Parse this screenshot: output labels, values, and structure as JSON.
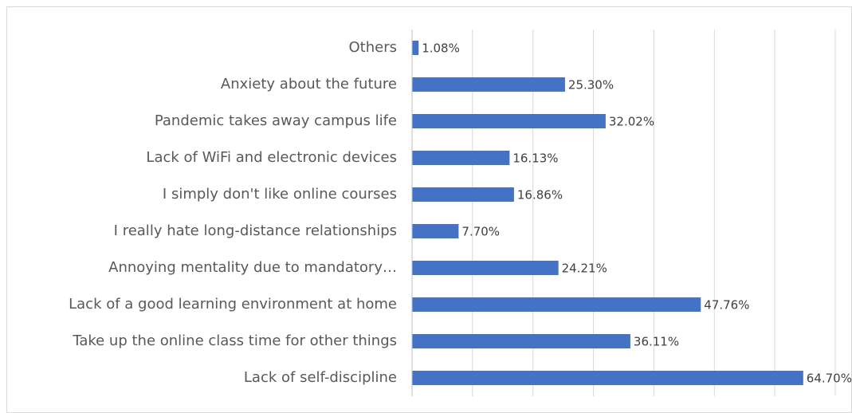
{
  "chart_data": {
    "type": "bar",
    "orientation": "horizontal",
    "categories": [
      "Others",
      "Anxiety about the future",
      "Pandemic takes away campus life",
      "Lack of WiFi and electronic devices",
      "I simply don't like online courses",
      "I really hate long-distance relationships",
      "Annoying mentality due to mandatory…",
      "Lack of a good learning environment at home",
      "Take up the online class time for other things",
      "Lack of self-discipline"
    ],
    "values": [
      1.08,
      25.3,
      32.02,
      16.13,
      16.86,
      7.7,
      24.21,
      47.76,
      36.11,
      64.7
    ],
    "value_labels": [
      "1.08%",
      "25.30%",
      "32.02%",
      "16.13%",
      "16.86%",
      "7.70%",
      "24.21%",
      "47.76%",
      "36.11%",
      "64.70%"
    ],
    "color": "#4472c4",
    "xlim": [
      0,
      70
    ],
    "xticks": [
      0,
      10,
      20,
      30,
      40,
      50,
      60,
      70
    ],
    "grid": true
  }
}
